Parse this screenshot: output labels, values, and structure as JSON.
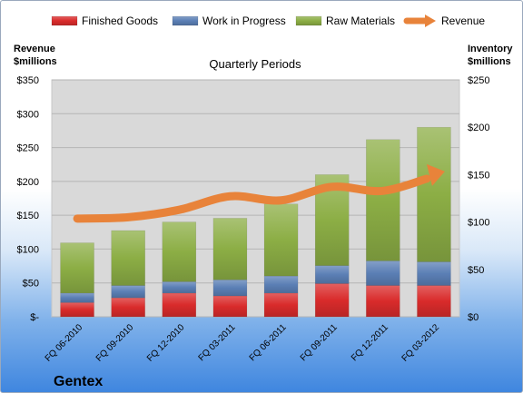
{
  "chart_data": {
    "type": "bar",
    "stacked": true,
    "subtitle": "Quarterly Periods",
    "company": "Gentex",
    "categories": [
      "FQ 06-2010",
      "FQ 09-2010",
      "FQ 12-2010",
      "FQ 03-2011",
      "FQ 06-2011",
      "FQ 09-2011",
      "FQ 12-2011",
      "FQ 03-2012"
    ],
    "series": [
      {
        "name": "Finished Goods",
        "axis": "right",
        "color": "#d92b2b",
        "values": [
          15,
          20,
          25,
          22,
          25,
          35,
          33,
          33
        ]
      },
      {
        "name": "Work in Progress",
        "axis": "right",
        "color": "#5b7fb5",
        "values": [
          10,
          13,
          12,
          17,
          18,
          19,
          26,
          25
        ]
      },
      {
        "name": "Raw Materials",
        "axis": "right",
        "color": "#8cae45",
        "values": [
          53,
          58,
          63,
          65,
          76,
          96,
          128,
          142
        ]
      },
      {
        "name": "Revenue",
        "axis": "left",
        "type": "line",
        "color": "#e8833a",
        "values": [
          145,
          147,
          158,
          178,
          172,
          192,
          186,
          208
        ]
      }
    ],
    "left_axis": {
      "title_lines": [
        "Revenue",
        "$millions"
      ],
      "ylim": [
        0,
        350
      ],
      "ticks": [
        0,
        50,
        100,
        150,
        200,
        250,
        300,
        350
      ],
      "tick_labels": [
        "$-",
        "$50",
        "$100",
        "$150",
        "$200",
        "$250",
        "$300",
        "$350"
      ]
    },
    "right_axis": {
      "title_lines": [
        "Inventory",
        "$millions"
      ],
      "ylim": [
        0,
        250
      ],
      "ticks": [
        0,
        50,
        100,
        150,
        200,
        250
      ],
      "tick_labels": [
        "$0",
        "$50",
        "$100",
        "$150",
        "$200",
        "$250"
      ]
    },
    "grid": true,
    "legend_position": "top"
  }
}
